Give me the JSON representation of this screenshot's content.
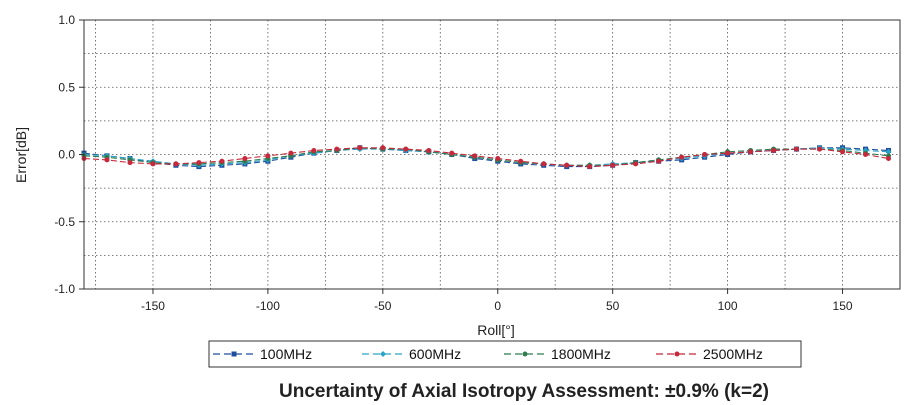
{
  "chart_data": {
    "type": "line",
    "title": "",
    "caption": "Uncertainty of Axial Isotropy Assessment: ±0.9% (k=2)",
    "xlabel": "Roll[°]",
    "ylabel": "Error[dB]",
    "xlim": [
      -180,
      175
    ],
    "ylim": [
      -1.0,
      1.0
    ],
    "xticks": [
      -150,
      -100,
      -50,
      0,
      50,
      100,
      150
    ],
    "yticks": [
      "1.0",
      "0.5",
      "0.0",
      "-0.5",
      "-1.0"
    ],
    "grid": true,
    "legend_position": "bottom",
    "x": [
      -180,
      -170,
      -160,
      -150,
      -140,
      -130,
      -120,
      -110,
      -100,
      -90,
      -80,
      -70,
      -60,
      -50,
      -40,
      -30,
      -20,
      -10,
      0,
      10,
      20,
      30,
      40,
      50,
      60,
      70,
      80,
      90,
      100,
      110,
      120,
      130,
      140,
      150,
      160,
      170
    ],
    "series": [
      {
        "name": "100MHz",
        "color": "#1f4e9e",
        "marker": "square",
        "values": [
          0.01,
          -0.01,
          -0.03,
          -0.06,
          -0.08,
          -0.09,
          -0.08,
          -0.07,
          -0.05,
          -0.02,
          0.01,
          0.03,
          0.05,
          0.04,
          0.03,
          0.02,
          0.0,
          -0.03,
          -0.05,
          -0.07,
          -0.08,
          -0.09,
          -0.09,
          -0.08,
          -0.06,
          -0.05,
          -0.04,
          -0.02,
          0.0,
          0.02,
          0.03,
          0.04,
          0.05,
          0.05,
          0.04,
          0.03
        ]
      },
      {
        "name": "600MHz",
        "color": "#2aa3c8",
        "marker": "diamond",
        "values": [
          0.0,
          -0.01,
          -0.03,
          -0.05,
          -0.07,
          -0.08,
          -0.07,
          -0.06,
          -0.04,
          -0.01,
          0.01,
          0.03,
          0.04,
          0.04,
          0.03,
          0.02,
          0.0,
          -0.02,
          -0.04,
          -0.06,
          -0.07,
          -0.08,
          -0.08,
          -0.07,
          -0.06,
          -0.04,
          -0.03,
          -0.01,
          0.01,
          0.02,
          0.03,
          0.04,
          0.05,
          0.04,
          0.03,
          0.02
        ]
      },
      {
        "name": "1800MHz",
        "color": "#2e7d4f",
        "marker": "circle",
        "values": [
          -0.01,
          -0.02,
          -0.04,
          -0.06,
          -0.07,
          -0.07,
          -0.06,
          -0.05,
          -0.03,
          -0.01,
          0.02,
          0.03,
          0.05,
          0.04,
          0.04,
          0.02,
          0.0,
          -0.02,
          -0.04,
          -0.06,
          -0.07,
          -0.08,
          -0.08,
          -0.08,
          -0.06,
          -0.04,
          -0.02,
          0.0,
          0.02,
          0.03,
          0.04,
          0.04,
          0.04,
          0.03,
          0.01,
          -0.01
        ]
      },
      {
        "name": "2500MHz",
        "color": "#c8283c",
        "marker": "circle",
        "values": [
          -0.03,
          -0.04,
          -0.06,
          -0.07,
          -0.07,
          -0.06,
          -0.05,
          -0.03,
          -0.01,
          0.01,
          0.03,
          0.04,
          0.05,
          0.05,
          0.04,
          0.03,
          0.01,
          -0.01,
          -0.03,
          -0.05,
          -0.07,
          -0.08,
          -0.09,
          -0.08,
          -0.07,
          -0.05,
          -0.02,
          0.0,
          0.01,
          0.02,
          0.03,
          0.04,
          0.04,
          0.02,
          0.0,
          -0.03
        ]
      }
    ]
  }
}
